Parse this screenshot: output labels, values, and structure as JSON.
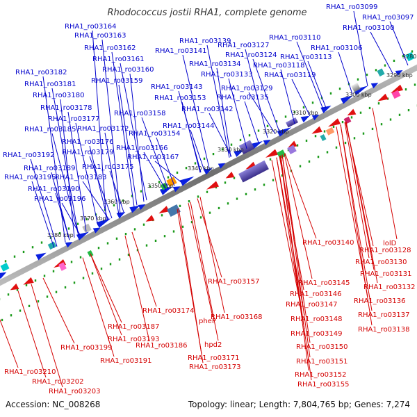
{
  "title": "Rhodococcus jostii RHA1, complete genome",
  "footer": {
    "accession": "Accession: NC_008268",
    "topology": "Topology: linear; Length: 7,804,765 bp; Genes: 7,274"
  },
  "ticks": [
    "3280 kbp",
    "3290 kbp",
    "3300 kbp",
    "3310 kbp",
    "3320 kbp",
    "3330 kbp",
    "3340 kbp",
    "3350 kbp",
    "3360 kbp",
    "3370 kbp",
    "3380 kbp"
  ],
  "top_labels": [
    "RHA1_ro03099",
    "RHA1_ro03097",
    "RHA1_ro03100",
    "RHA1_ro03110",
    "RHA1_ro03106",
    "RHA1_ro03113",
    "RHA1_ro03127",
    "RHA1_ro03124",
    "RHA1_ro03118",
    "RHA1_ro03119",
    "RHA1_ro03139",
    "RHA1_ro03141",
    "RHA1_ro03134",
    "RHA1_ro03133",
    "RHA1_ro03143",
    "RHA1_ro03129",
    "RHA1_ro03135",
    "RHA1_ro03153",
    "RHA1_ro03142",
    "RHA1_ro03158",
    "RHA1_ro03144",
    "RHA1_ro03154",
    "RHA1_ro03166",
    "RHA1_ro03167",
    "RHA1_ro03164",
    "RHA1_ro03163",
    "RHA1_ro03162",
    "RHA1_ro03161",
    "RHA1_ro03160",
    "RHA1_ro03159",
    "RHA1_ro03182",
    "RHA1_ro03181",
    "RHA1_ro03180",
    "RHA1_ro03178",
    "RHA1_ro03177",
    "RHA1_ro03185",
    "RHA1_ro03172",
    "RHA1_ro03176",
    "RHA1_ro03179",
    "RHA1_ro03192",
    "RHA1_ro03175",
    "RHA1_ro03189",
    "RHA1_ro03195",
    "RHA1_ro03183",
    "RHA1_ro03190",
    "RHA1_ro03196"
  ],
  "bottom_labels": [
    "lolD",
    "RHA1_ro03128",
    "RHA1_ro03140",
    "RHA1_ro03130",
    "RHA1_ro03131",
    "RHA1_ro03132",
    "RHA1_ro03157",
    "RHA1_ro03145",
    "RHA1_ro03136",
    "RHA1_ro03146",
    "RHA1_ro03147",
    "RHA1_ro03137",
    "RHA1_ro03168",
    "RHA1_ro03148",
    "RHA1_ro03138",
    "RHA1_ro03174",
    "RHA1_ro03149",
    "RHA1_ro03187",
    "pheP",
    "RHA1_ro03150",
    "RHA1_ro03193",
    "RHA1_ro03186",
    "hpd2",
    "RHA1_ro03199",
    "RHA1_ro03171",
    "RHA1_ro03151",
    "RHA1_ro03191",
    "RHA1_ro03173",
    "RHA1_ro03152",
    "RHA1_ro03155",
    "RHA1_ro03210",
    "RHA1_ro03202",
    "RHA1_ro03203"
  ],
  "colors": {
    "forward_gene": "#0a20e0",
    "reverse_gene": "#e01010",
    "top_leader": "#0000cc",
    "bottom_leader": "#d40000",
    "backbone": "#888888",
    "tick_dots": "#1a9a1a"
  }
}
